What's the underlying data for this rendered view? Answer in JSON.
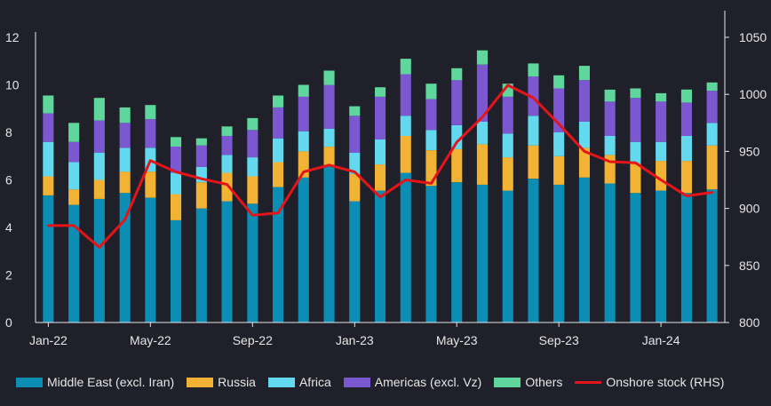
{
  "chart_data": {
    "type": "bar",
    "stacked": true,
    "categories": [
      "Jan-22",
      "Feb-22",
      "Mar-22",
      "Apr-22",
      "May-22",
      "Jun-22",
      "Jul-22",
      "Aug-22",
      "Sep-22",
      "Oct-22",
      "Nov-22",
      "Dec-22",
      "Jan-23",
      "Feb-23",
      "Mar-23",
      "Apr-23",
      "May-23",
      "Jun-23",
      "Jul-23",
      "Aug-23",
      "Sep-23",
      "Oct-23",
      "Nov-23",
      "Dec-23",
      "Jan-24",
      "Feb-24",
      "Mar-24"
    ],
    "x_tick_labels": [
      {
        "index": 0,
        "label": "Jan-22"
      },
      {
        "index": 4,
        "label": "May-22"
      },
      {
        "index": 8,
        "label": "Sep-22"
      },
      {
        "index": 12,
        "label": "Jan-23"
      },
      {
        "index": 16,
        "label": "May-23"
      },
      {
        "index": 20,
        "label": "Sep-23"
      },
      {
        "index": 24,
        "label": "Jan-24"
      }
    ],
    "series": [
      {
        "name": "Middle East (excl. Iran)",
        "color": "#0c8db3",
        "values": [
          5.35,
          4.95,
          5.2,
          5.45,
          5.25,
          4.3,
          4.8,
          5.1,
          5.0,
          5.7,
          6.1,
          6.6,
          5.1,
          5.55,
          6.3,
          5.75,
          5.9,
          5.8,
          5.55,
          6.05,
          5.8,
          6.1,
          5.85,
          5.45,
          5.55,
          5.45,
          5.6
        ]
      },
      {
        "name": "Russia",
        "color": "#f2b233",
        "values": [
          0.8,
          0.65,
          0.8,
          0.9,
          1.1,
          1.1,
          1.1,
          1.2,
          1.15,
          1.05,
          1.1,
          0.8,
          1.15,
          1.1,
          1.55,
          1.5,
          1.4,
          1.7,
          1.4,
          1.4,
          1.2,
          1.25,
          1.2,
          1.25,
          1.25,
          1.35,
          1.85
        ]
      },
      {
        "name": "Africa",
        "color": "#63d9ef",
        "values": [
          1.45,
          1.15,
          1.15,
          1.0,
          1.0,
          0.9,
          0.65,
          0.75,
          0.8,
          1.0,
          0.85,
          0.75,
          0.9,
          1.05,
          0.85,
          0.85,
          1.0,
          0.95,
          1.0,
          1.25,
          1.0,
          1.1,
          0.8,
          0.9,
          0.8,
          1.05,
          0.95
        ]
      },
      {
        "name": "Americas (excl. Vz)",
        "color": "#7b58d0",
        "values": [
          1.2,
          0.85,
          1.35,
          1.05,
          1.2,
          1.1,
          0.9,
          0.8,
          1.15,
          1.3,
          1.45,
          1.85,
          1.55,
          1.8,
          1.75,
          1.3,
          1.9,
          2.4,
          1.55,
          1.65,
          1.85,
          1.75,
          1.45,
          1.85,
          1.7,
          1.4,
          1.35
        ]
      },
      {
        "name": "Others",
        "color": "#5ed69c",
        "values": [
          0.75,
          0.8,
          0.95,
          0.65,
          0.6,
          0.4,
          0.3,
          0.4,
          0.5,
          0.5,
          0.5,
          0.6,
          0.4,
          0.4,
          0.65,
          0.65,
          0.5,
          0.6,
          0.55,
          0.55,
          0.55,
          0.6,
          0.5,
          0.4,
          0.35,
          0.55,
          0.35
        ]
      }
    ],
    "line_series": {
      "name": "Onshore stock (RHS)",
      "color": "#e5141a",
      "axis": "right",
      "values": [
        885,
        885,
        866,
        890,
        942,
        932,
        926,
        921,
        894,
        896,
        932,
        938,
        932,
        910,
        925,
        922,
        958,
        980,
        1008,
        997,
        974,
        950,
        941,
        940,
        925,
        911,
        914
      ]
    },
    "y_left": {
      "min": 0,
      "max": 12,
      "ticks": [
        0,
        2,
        4,
        6,
        8,
        10,
        12
      ]
    },
    "y_right": {
      "min": 800,
      "max": 1050,
      "ticks": [
        800,
        850,
        900,
        950,
        1000,
        1050
      ]
    },
    "title": "",
    "xlabel": "",
    "ylabel": ""
  },
  "colors": {
    "background": "#1f2029",
    "axis": "#e6e6e6",
    "text": "#e6e6e6"
  }
}
